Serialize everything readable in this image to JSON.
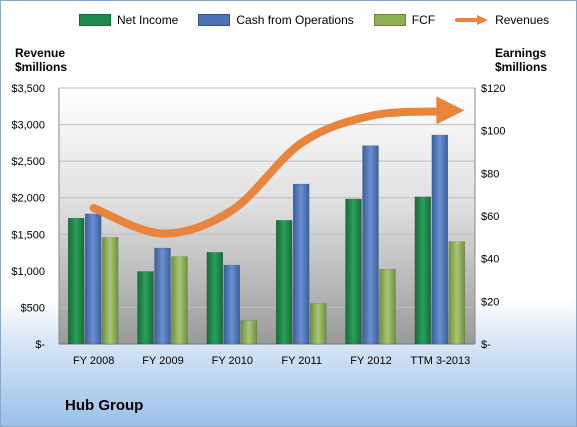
{
  "company": "Hub Group",
  "y_left_title": [
    "Revenue",
    "$millions"
  ],
  "y_right_title": [
    "Earnings",
    "$millions"
  ],
  "colors": {
    "net_income": "#1e8a4c",
    "cash_from_operations": "#4a72b5",
    "fcf": "#8fb055",
    "revenues": "#e8843c"
  },
  "legend": [
    {
      "label": "Net Income",
      "color": "#1e8a4c",
      "kind": "bar"
    },
    {
      "label": "Cash from Operations",
      "color": "#4a72b5",
      "kind": "bar"
    },
    {
      "label": "FCF",
      "color": "#8fb055",
      "kind": "bar"
    },
    {
      "label": "Revenues",
      "color": "#e8843c",
      "kind": "arrow"
    }
  ],
  "chart_data": {
    "type": "bar",
    "categories": [
      "FY 2008",
      "FY 2009",
      "FY 2010",
      "FY 2011",
      "FY 2012",
      "TTM 3-2013"
    ],
    "series": [
      {
        "name": "Net Income",
        "axis": "right",
        "values": [
          59,
          34,
          43,
          58,
          68,
          69
        ]
      },
      {
        "name": "Cash from Operations",
        "axis": "right",
        "values": [
          61,
          45,
          37,
          75,
          93,
          98
        ]
      },
      {
        "name": "FCF",
        "axis": "right",
        "values": [
          50,
          41,
          11,
          19,
          35,
          48
        ]
      },
      {
        "name": "Revenues",
        "axis": "left",
        "kind": "line",
        "values": [
          1860,
          1510,
          1830,
          2750,
          3120,
          3180
        ]
      }
    ],
    "y_left": {
      "ticks": [
        "$-",
        "$500",
        "$1,000",
        "$1,500",
        "$2,000",
        "$2,500",
        "$3,000",
        "$3,500"
      ],
      "ylim": [
        0,
        3500
      ]
    },
    "y_right": {
      "ticks": [
        "$-",
        "$20",
        "$40",
        "$60",
        "$80",
        "$100",
        "$120"
      ],
      "ylim": [
        0,
        120
      ]
    },
    "grid": true
  }
}
